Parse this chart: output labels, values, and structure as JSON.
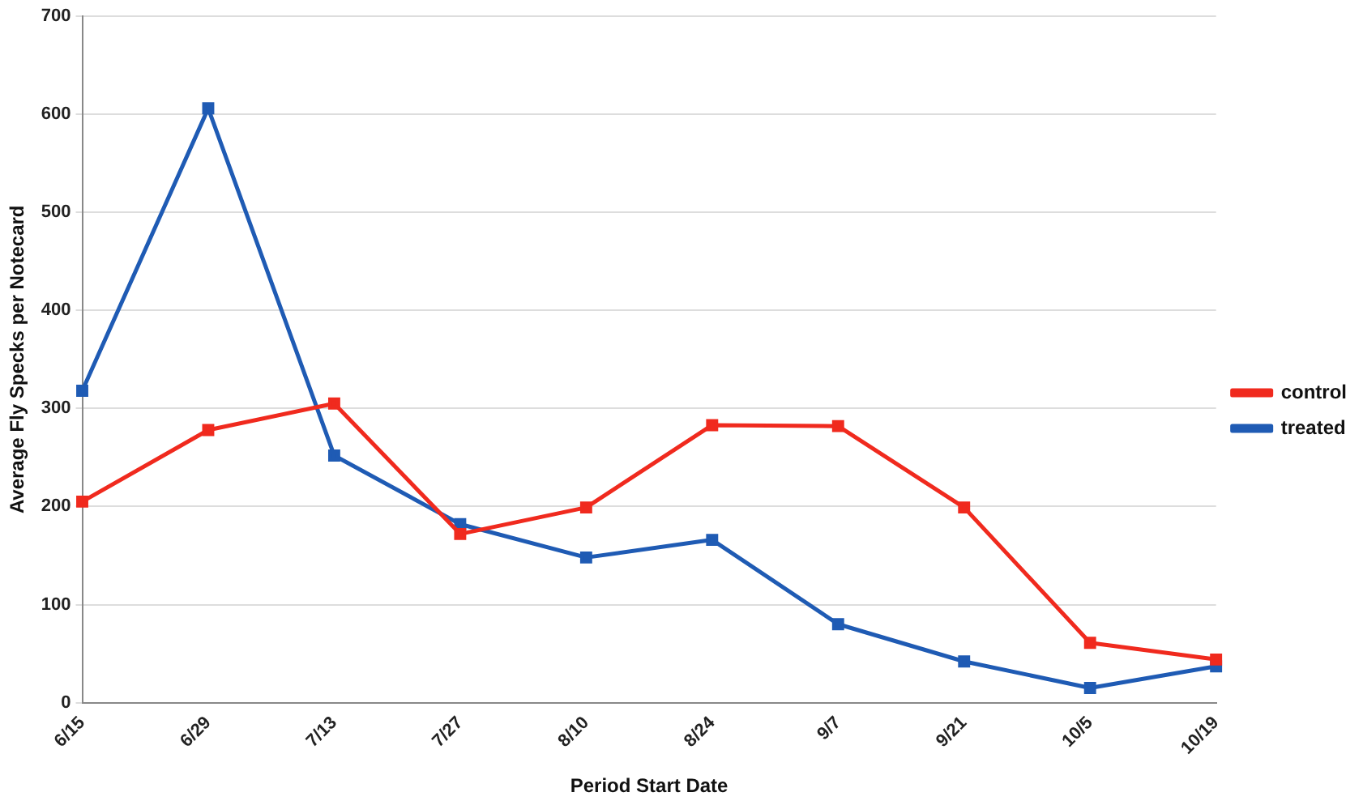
{
  "chart_data": {
    "type": "line",
    "xlabel": "Period Start Date",
    "ylabel": "Average Fly Specks per Notecard",
    "categories": [
      "6/15",
      "6/29",
      "7/13",
      "7/27",
      "8/10",
      "8/24",
      "9/7",
      "9/21",
      "10/5",
      "10/19"
    ],
    "series": [
      {
        "name": "control",
        "color": "#f02a1e",
        "values": [
          205,
          278,
          305,
          172,
          199,
          283,
          282,
          199,
          61,
          44
        ]
      },
      {
        "name": "treated",
        "color": "#1f5bb4",
        "values": [
          318,
          606,
          252,
          182,
          148,
          166,
          80,
          42,
          15,
          37
        ]
      }
    ],
    "ylim": [
      0,
      700
    ],
    "yticks": [
      0,
      100,
      200,
      300,
      400,
      500,
      600,
      700
    ],
    "grid": "y",
    "legend": "right",
    "marker": "square",
    "line_style": "solid"
  }
}
